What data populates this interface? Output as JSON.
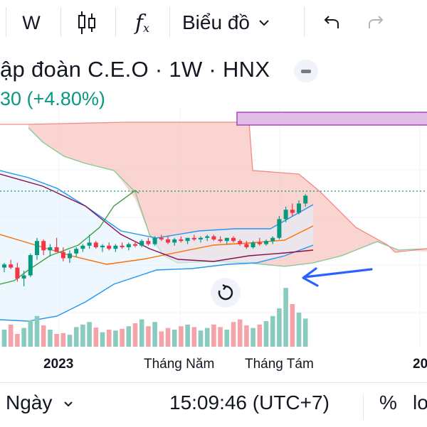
{
  "toolbar": {
    "interval_label": "W",
    "chart_type_icon": "candlestick-icon",
    "indicators_icon": "fx-icon",
    "chart_menu_label": "Biểu đồ",
    "undo_icon": "undo-icon",
    "redo_icon": "redo-icon"
  },
  "legend": {
    "title": "ập đoàn C.E.O · 1W · HNX",
    "change": "30 (+4.80%)"
  },
  "x_axis": {
    "labels": [
      "2023",
      "Tháng Năm",
      "Tháng Tám",
      "20"
    ]
  },
  "bottom_bar": {
    "range_label": "Ngày",
    "clock": "15:09:46 (UTC+7)",
    "percent_label": "%",
    "log_label": "lo"
  },
  "colors": {
    "up": "#089981",
    "down": "#f23645",
    "cloud_bearish": "#f7c6c2",
    "cloud_bullish": "#cfe6d6",
    "annotation_arrow": "#2962ff",
    "rectangle": "#ce93d8"
  },
  "chart_data": {
    "type": "candlestick",
    "series": [
      {
        "name": "price",
        "values": [
          [
            47,
            50,
            44,
            49
          ],
          [
            49,
            52,
            46,
            47
          ],
          [
            47,
            50,
            38,
            40
          ],
          [
            40,
            45,
            35,
            42
          ],
          [
            42,
            56,
            41,
            55
          ],
          [
            55,
            66,
            52,
            64
          ],
          [
            64,
            65,
            55,
            58
          ],
          [
            58,
            62,
            54,
            60
          ],
          [
            60,
            66,
            58,
            57
          ],
          [
            57,
            60,
            51,
            53
          ],
          [
            53,
            58,
            50,
            56
          ],
          [
            56,
            60,
            54,
            59
          ],
          [
            59,
            62,
            57,
            61
          ],
          [
            61,
            68,
            59,
            63
          ],
          [
            63,
            64,
            59,
            60
          ],
          [
            60,
            62,
            57,
            61
          ],
          [
            61,
            63,
            58,
            59
          ],
          [
            59,
            62,
            57,
            61
          ],
          [
            61,
            63,
            59,
            60
          ],
          [
            60,
            63,
            58,
            62
          ],
          [
            62,
            64,
            60,
            61
          ],
          [
            61,
            65,
            60,
            64
          ],
          [
            64,
            66,
            61,
            62
          ],
          [
            62,
            67,
            61,
            66
          ],
          [
            66,
            68,
            64,
            65
          ],
          [
            65,
            67,
            62,
            63
          ],
          [
            63,
            66,
            61,
            65
          ],
          [
            65,
            67,
            63,
            64
          ],
          [
            64,
            66,
            62,
            66
          ],
          [
            66,
            68,
            64,
            65
          ],
          [
            65,
            67,
            63,
            66
          ],
          [
            66,
            68,
            64,
            67
          ],
          [
            67,
            68,
            64,
            65
          ],
          [
            65,
            67,
            63,
            64
          ],
          [
            64,
            66,
            62,
            66
          ],
          [
            66,
            67,
            63,
            64
          ],
          [
            64,
            65,
            61,
            62
          ],
          [
            62,
            64,
            59,
            60
          ],
          [
            60,
            64,
            59,
            63
          ],
          [
            63,
            66,
            61,
            62
          ],
          [
            62,
            65,
            61,
            64
          ],
          [
            64,
            67,
            62,
            66
          ],
          [
            66,
            80,
            65,
            78
          ],
          [
            78,
            86,
            76,
            84
          ],
          [
            84,
            88,
            80,
            82
          ],
          [
            82,
            90,
            81,
            88
          ],
          [
            88,
            94,
            86,
            93
          ]
        ]
      },
      {
        "name": "volume",
        "values": [
          40,
          52,
          30,
          44,
          62,
          72,
          50,
          40,
          30,
          32,
          28,
          46,
          52,
          58,
          45,
          34,
          40,
          38,
          42,
          48,
          55,
          64,
          48,
          58,
          36,
          44,
          40,
          48,
          52,
          46,
          38,
          44,
          52,
          46,
          40,
          58,
          64,
          50,
          44,
          52,
          60,
          72,
          90,
          138,
          100,
          80,
          66
        ]
      }
    ]
  }
}
